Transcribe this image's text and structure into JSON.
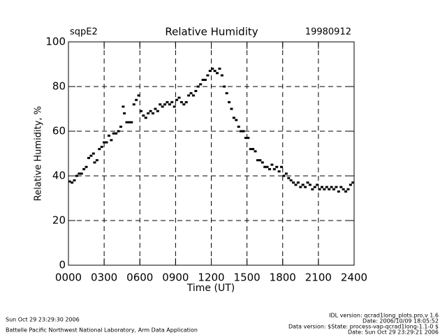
{
  "chart_data": {
    "type": "scatter",
    "site": "sqpE2",
    "title": "Relative Humidity",
    "date": "19980912",
    "x_label": "Time (UT)",
    "y_label": "Relative Humidity, %",
    "color": "#000000",
    "grid": true,
    "xlim": [
      0,
      24
    ],
    "ylim": [
      0,
      100
    ],
    "xticks": [
      {
        "value": 0,
        "label": "0000"
      },
      {
        "value": 3,
        "label": "0300"
      },
      {
        "value": 6,
        "label": "0600"
      },
      {
        "value": 9,
        "label": "0900"
      },
      {
        "value": 12,
        "label": "1200"
      },
      {
        "value": 15,
        "label": "1500"
      },
      {
        "value": 18,
        "label": "1800"
      },
      {
        "value": 21,
        "label": "2100"
      },
      {
        "value": 24,
        "label": "2400"
      }
    ],
    "yticks": [
      0,
      20,
      40,
      60,
      80,
      100
    ],
    "x": [
      0.1,
      0.3,
      0.5,
      0.7,
      0.9,
      1.1,
      1.3,
      1.5,
      1.7,
      1.9,
      2.1,
      2.2,
      2.4,
      2.6,
      2.8,
      3.0,
      3.2,
      3.4,
      3.6,
      3.8,
      4.0,
      4.2,
      4.4,
      4.6,
      4.7,
      4.9,
      5.1,
      5.3,
      5.5,
      5.7,
      5.9,
      6.1,
      6.3,
      6.5,
      6.7,
      6.9,
      7.1,
      7.3,
      7.5,
      7.7,
      7.9,
      8.1,
      8.3,
      8.5,
      8.7,
      8.9,
      9.1,
      9.3,
      9.5,
      9.7,
      9.9,
      10.1,
      10.3,
      10.5,
      10.7,
      10.9,
      11.1,
      11.3,
      11.5,
      11.7,
      11.9,
      12.1,
      12.3,
      12.5,
      12.7,
      12.9,
      13.1,
      13.3,
      13.5,
      13.7,
      13.9,
      14.1,
      14.3,
      14.5,
      14.7,
      14.9,
      15.1,
      15.3,
      15.5,
      15.7,
      15.9,
      16.1,
      16.3,
      16.5,
      16.7,
      16.9,
      17.1,
      17.3,
      17.5,
      17.7,
      17.9,
      18.1,
      18.3,
      18.5,
      18.7,
      18.9,
      19.1,
      19.3,
      19.5,
      19.7,
      19.9,
      20.1,
      20.3,
      20.5,
      20.7,
      20.9,
      21.1,
      21.3,
      21.5,
      21.7,
      21.9,
      22.1,
      22.3,
      22.5,
      22.7,
      22.9,
      23.1,
      23.3,
      23.5,
      23.7,
      23.9
    ],
    "values": [
      37.5,
      37,
      38,
      40,
      41,
      41,
      43,
      44,
      48,
      49,
      50,
      46,
      47,
      52,
      53,
      55,
      55,
      58,
      56,
      59,
      59,
      60,
      62,
      71,
      68,
      64,
      64,
      64,
      72,
      74,
      76,
      69,
      67,
      66,
      68,
      69,
      68,
      70,
      69,
      72,
      71,
      72,
      73,
      72,
      73,
      71,
      74,
      75,
      73,
      72,
      73,
      76,
      77,
      76,
      78,
      80,
      81,
      83,
      83,
      85,
      87,
      88,
      87,
      86,
      88,
      85,
      80,
      77,
      73,
      70,
      66,
      65,
      62,
      60,
      60,
      57,
      57,
      52,
      52,
      51,
      47,
      47,
      46,
      44,
      44,
      43,
      45,
      43,
      44,
      42,
      44,
      40,
      41,
      39,
      38,
      37,
      36,
      37,
      35,
      36,
      35,
      37,
      36,
      34,
      35,
      36,
      34,
      35,
      34,
      35,
      34,
      35,
      34,
      35,
      33,
      35,
      34,
      33,
      34,
      36,
      37
    ]
  },
  "footer": {
    "left": [
      "Sun Oct 29 23:29:30 2006",
      "Battelle Pacific Northwest National Laboratory, Arm Data Application"
    ],
    "right": [
      "IDL version: qcrad1long_plots.pro,v 1.6",
      "Date: 2006/10/09 18:05:52",
      "Data version: $State: process-vap-qcrad1long-1.1-0 $",
      "Date: Sun Oct 29 23:29:21 2006"
    ]
  }
}
